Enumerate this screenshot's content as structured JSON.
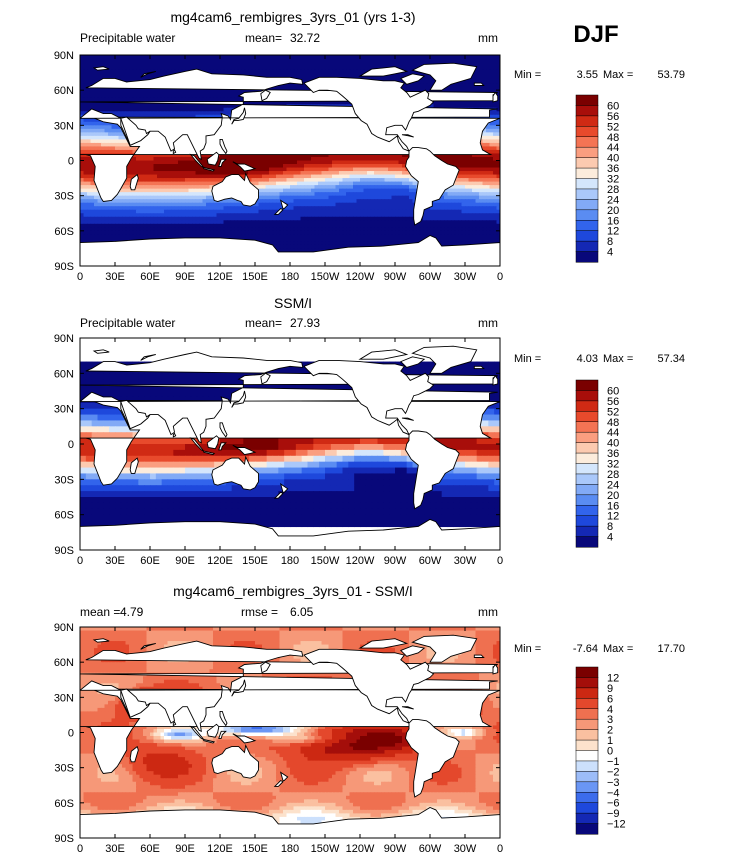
{
  "season": "DJF",
  "lon_ticks": [
    "0",
    "30E",
    "60E",
    "90E",
    "120E",
    "150E",
    "180",
    "150W",
    "120W",
    "90W",
    "60W",
    "30W",
    "0"
  ],
  "lat_ticks": [
    "90N",
    "60N",
    "30N",
    "0",
    "30S",
    "60S",
    "90S"
  ],
  "colors": {
    "pw_scale": [
      "#08087a",
      "#1428b4",
      "#1e48dc",
      "#3264ec",
      "#5a8cf2",
      "#82aaf6",
      "#aac8fa",
      "#d4e6fc",
      "#fcecdc",
      "#fccab0",
      "#fa9e80",
      "#f47454",
      "#e84a2c",
      "#d02a14",
      "#a80e0a",
      "#7a0000"
    ],
    "diff_scale": [
      "#08087a",
      "#1428b4",
      "#1e48dc",
      "#3c6cec",
      "#6a96f4",
      "#9cbcf8",
      "#cce0fc",
      "#ffffff",
      "#fce2cc",
      "#fac0a0",
      "#f69878",
      "#ef7050",
      "#e4482c",
      "#cc2812",
      "#a40e0a",
      "#7a0000"
    ],
    "land": "#ffffff",
    "coast": "#000000"
  },
  "chart_data": [
    {
      "type": "heatmap",
      "title": "mg4cam6_rembigres_3yrs_01 (yrs 1-3)",
      "left_label": "Precipitable water",
      "stat1_label": "mean=",
      "stat1_value": "32.72",
      "units": "mm",
      "min_label": "Min =",
      "min_value": "3.55",
      "max_label": "Max =",
      "max_value": "53.79",
      "colorbar_labels": [
        "4",
        "8",
        "12",
        "16",
        "20",
        "24",
        "28",
        "32",
        "36",
        "40",
        "44",
        "48",
        "52",
        "56",
        "60"
      ],
      "xlim": [
        0,
        360
      ],
      "ylim": [
        -90,
        90
      ],
      "field": "pw_model"
    },
    {
      "type": "heatmap",
      "title": "SSM/I",
      "left_label": "Precipitable water",
      "stat1_label": "mean=",
      "stat1_value": "27.93",
      "units": "mm",
      "min_label": "Min =",
      "min_value": "4.03",
      "max_label": "Max =",
      "max_value": "57.34",
      "colorbar_labels": [
        "4",
        "8",
        "12",
        "16",
        "20",
        "24",
        "28",
        "32",
        "36",
        "40",
        "44",
        "48",
        "52",
        "56",
        "60"
      ],
      "xlim": [
        0,
        360
      ],
      "ylim": [
        -90,
        90
      ],
      "field": "pw_obs"
    },
    {
      "type": "heatmap",
      "title": "mg4cam6_rembigres_3yrs_01 - SSM/I",
      "stat1_label": "mean =",
      "stat1_value": "4.79",
      "stat2_label": "rmse =",
      "stat2_value": "6.05",
      "units": "mm",
      "min_label": "Min =",
      "min_value": "-7.64",
      "max_label": "Max =",
      "max_value": "17.70",
      "colorbar_labels": [
        "−12",
        "−9",
        "−6",
        "−4",
        "−3",
        "−2",
        "−1",
        "0",
        "1",
        "2",
        "3",
        "4",
        "6",
        "9",
        "12"
      ],
      "xlim": [
        0,
        360
      ],
      "ylim": [
        -90,
        90
      ],
      "field": "diff"
    }
  ]
}
